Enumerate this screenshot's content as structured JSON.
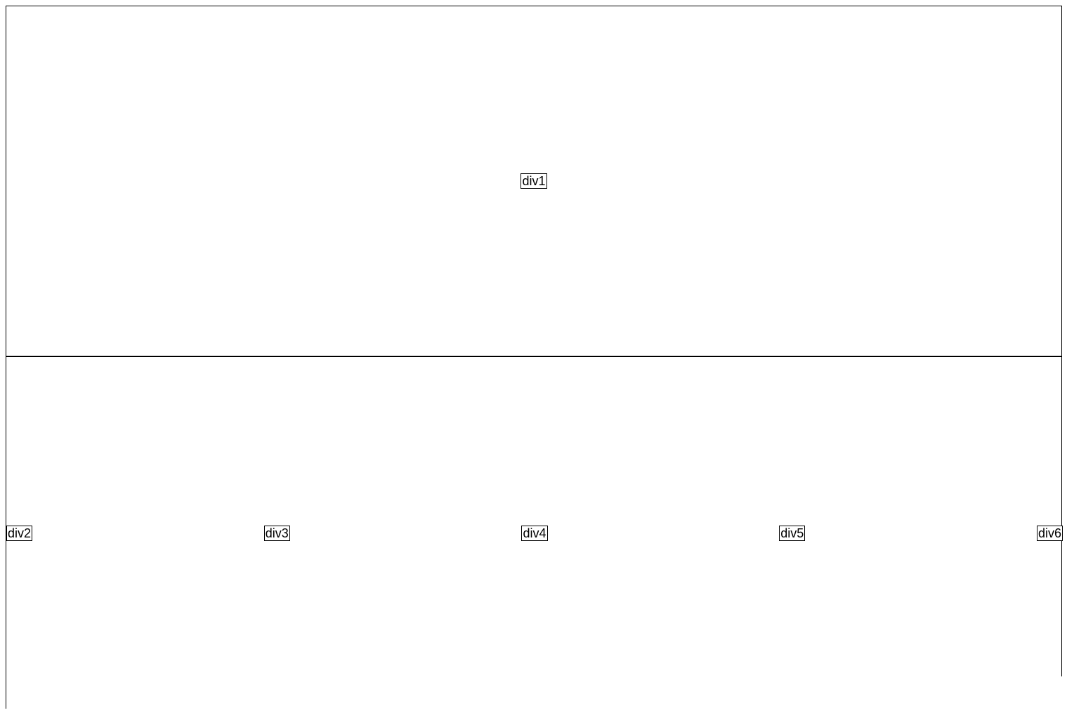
{
  "top": {
    "label": "div1"
  },
  "bottom": {
    "items": [
      {
        "label": "div2"
      },
      {
        "label": "div3"
      },
      {
        "label": "div4"
      },
      {
        "label": "div5"
      },
      {
        "label": "div6"
      }
    ]
  }
}
